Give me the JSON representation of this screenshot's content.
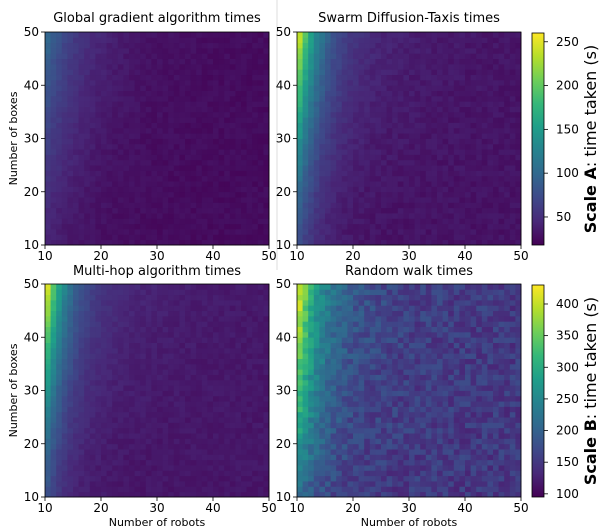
{
  "chart_data": [
    {
      "type": "heatmap",
      "title": "Global gradient algorithm times",
      "xlabel": "",
      "ylabel": "Number of boxes",
      "x_range": [
        10,
        50
      ],
      "y_range": [
        10,
        50
      ],
      "x_ticks": [
        10,
        20,
        30,
        40,
        50
      ],
      "y_ticks": [
        10,
        20,
        30,
        40,
        50
      ],
      "colorscale": "A",
      "value_range": [
        18,
        260
      ],
      "pattern": {
        "base": 25,
        "robots_amp": 70,
        "robots_decay": 6,
        "boxes_exp": 1.3,
        "noise": 8
      },
      "summary": {
        "max_at": {
          "robots": 10,
          "boxes": 50,
          "time": 110
        },
        "min_at": {
          "robots": 50,
          "boxes": 10,
          "time": 25
        }
      }
    },
    {
      "type": "heatmap",
      "title": "Swarm Diffusion-Taxis times",
      "xlabel": "",
      "ylabel": "",
      "x_range": [
        10,
        50
      ],
      "y_range": [
        10,
        50
      ],
      "x_ticks": [
        10,
        20,
        30,
        40,
        50
      ],
      "y_ticks": [
        10,
        20,
        30,
        40,
        50
      ],
      "colorscale": "A",
      "value_range": [
        18,
        260
      ],
      "pattern": {
        "base": 30,
        "robots_amp": 210,
        "robots_decay": 3.5,
        "boxes_exp": 1.4,
        "noise": 10
      },
      "summary": {
        "max_at": {
          "robots": 10,
          "boxes": 50,
          "time": 255
        },
        "min_at": {
          "robots": 50,
          "boxes": 10,
          "time": 28
        }
      }
    },
    {
      "type": "heatmap",
      "title": "Multi-hop algorithm times",
      "xlabel": "Number of robots",
      "ylabel": "Number of boxes",
      "x_range": [
        10,
        50
      ],
      "y_range": [
        10,
        50
      ],
      "x_ticks": [
        10,
        20,
        30,
        40,
        50
      ],
      "y_ticks": [
        10,
        20,
        30,
        40,
        50
      ],
      "colorscale": "B",
      "value_range": [
        95,
        430
      ],
      "pattern": {
        "base": 115,
        "robots_amp": 300,
        "robots_decay": 3.2,
        "boxes_exp": 1.5,
        "noise": 12
      },
      "summary": {
        "max_at": {
          "robots": 10,
          "boxes": 50,
          "time": 415
        },
        "min_at": {
          "robots": 50,
          "boxes": 10,
          "time": 110
        }
      }
    },
    {
      "type": "heatmap",
      "title": "Random walk times",
      "xlabel": "Number of robots",
      "ylabel": "",
      "x_range": [
        10,
        50
      ],
      "y_range": [
        10,
        50
      ],
      "x_ticks": [
        10,
        20,
        30,
        40,
        50
      ],
      "y_ticks": [
        10,
        20,
        30,
        40,
        50
      ],
      "colorscale": "B",
      "value_range": [
        95,
        430
      ],
      "pattern": {
        "base": 150,
        "robots_amp": 250,
        "robots_decay": 4,
        "boxes_exp": 0.8,
        "noise": 45
      },
      "summary": {
        "max_at": {
          "robots": 10,
          "boxes": 50,
          "time": 420
        },
        "min_at": {
          "robots": 50,
          "boxes": 10,
          "time": 110
        }
      }
    }
  ],
  "colorbars": [
    {
      "id": "A",
      "title_bold": "Scale A",
      "title_rest": ": time taken (s)",
      "ticks": [
        50,
        100,
        150,
        200,
        250
      ],
      "range": [
        18,
        260
      ]
    },
    {
      "id": "B",
      "title_bold": "Scale B",
      "title_rest": ": time taken (s)",
      "ticks": [
        100,
        150,
        200,
        250,
        300,
        350,
        400
      ],
      "range": [
        95,
        430
      ]
    }
  ],
  "colors": {
    "viridis": [
      "#440154",
      "#482878",
      "#3e4989",
      "#31688e",
      "#26828e",
      "#1f9e89",
      "#35b779",
      "#6ece58",
      "#b5de2b",
      "#fde725"
    ]
  }
}
